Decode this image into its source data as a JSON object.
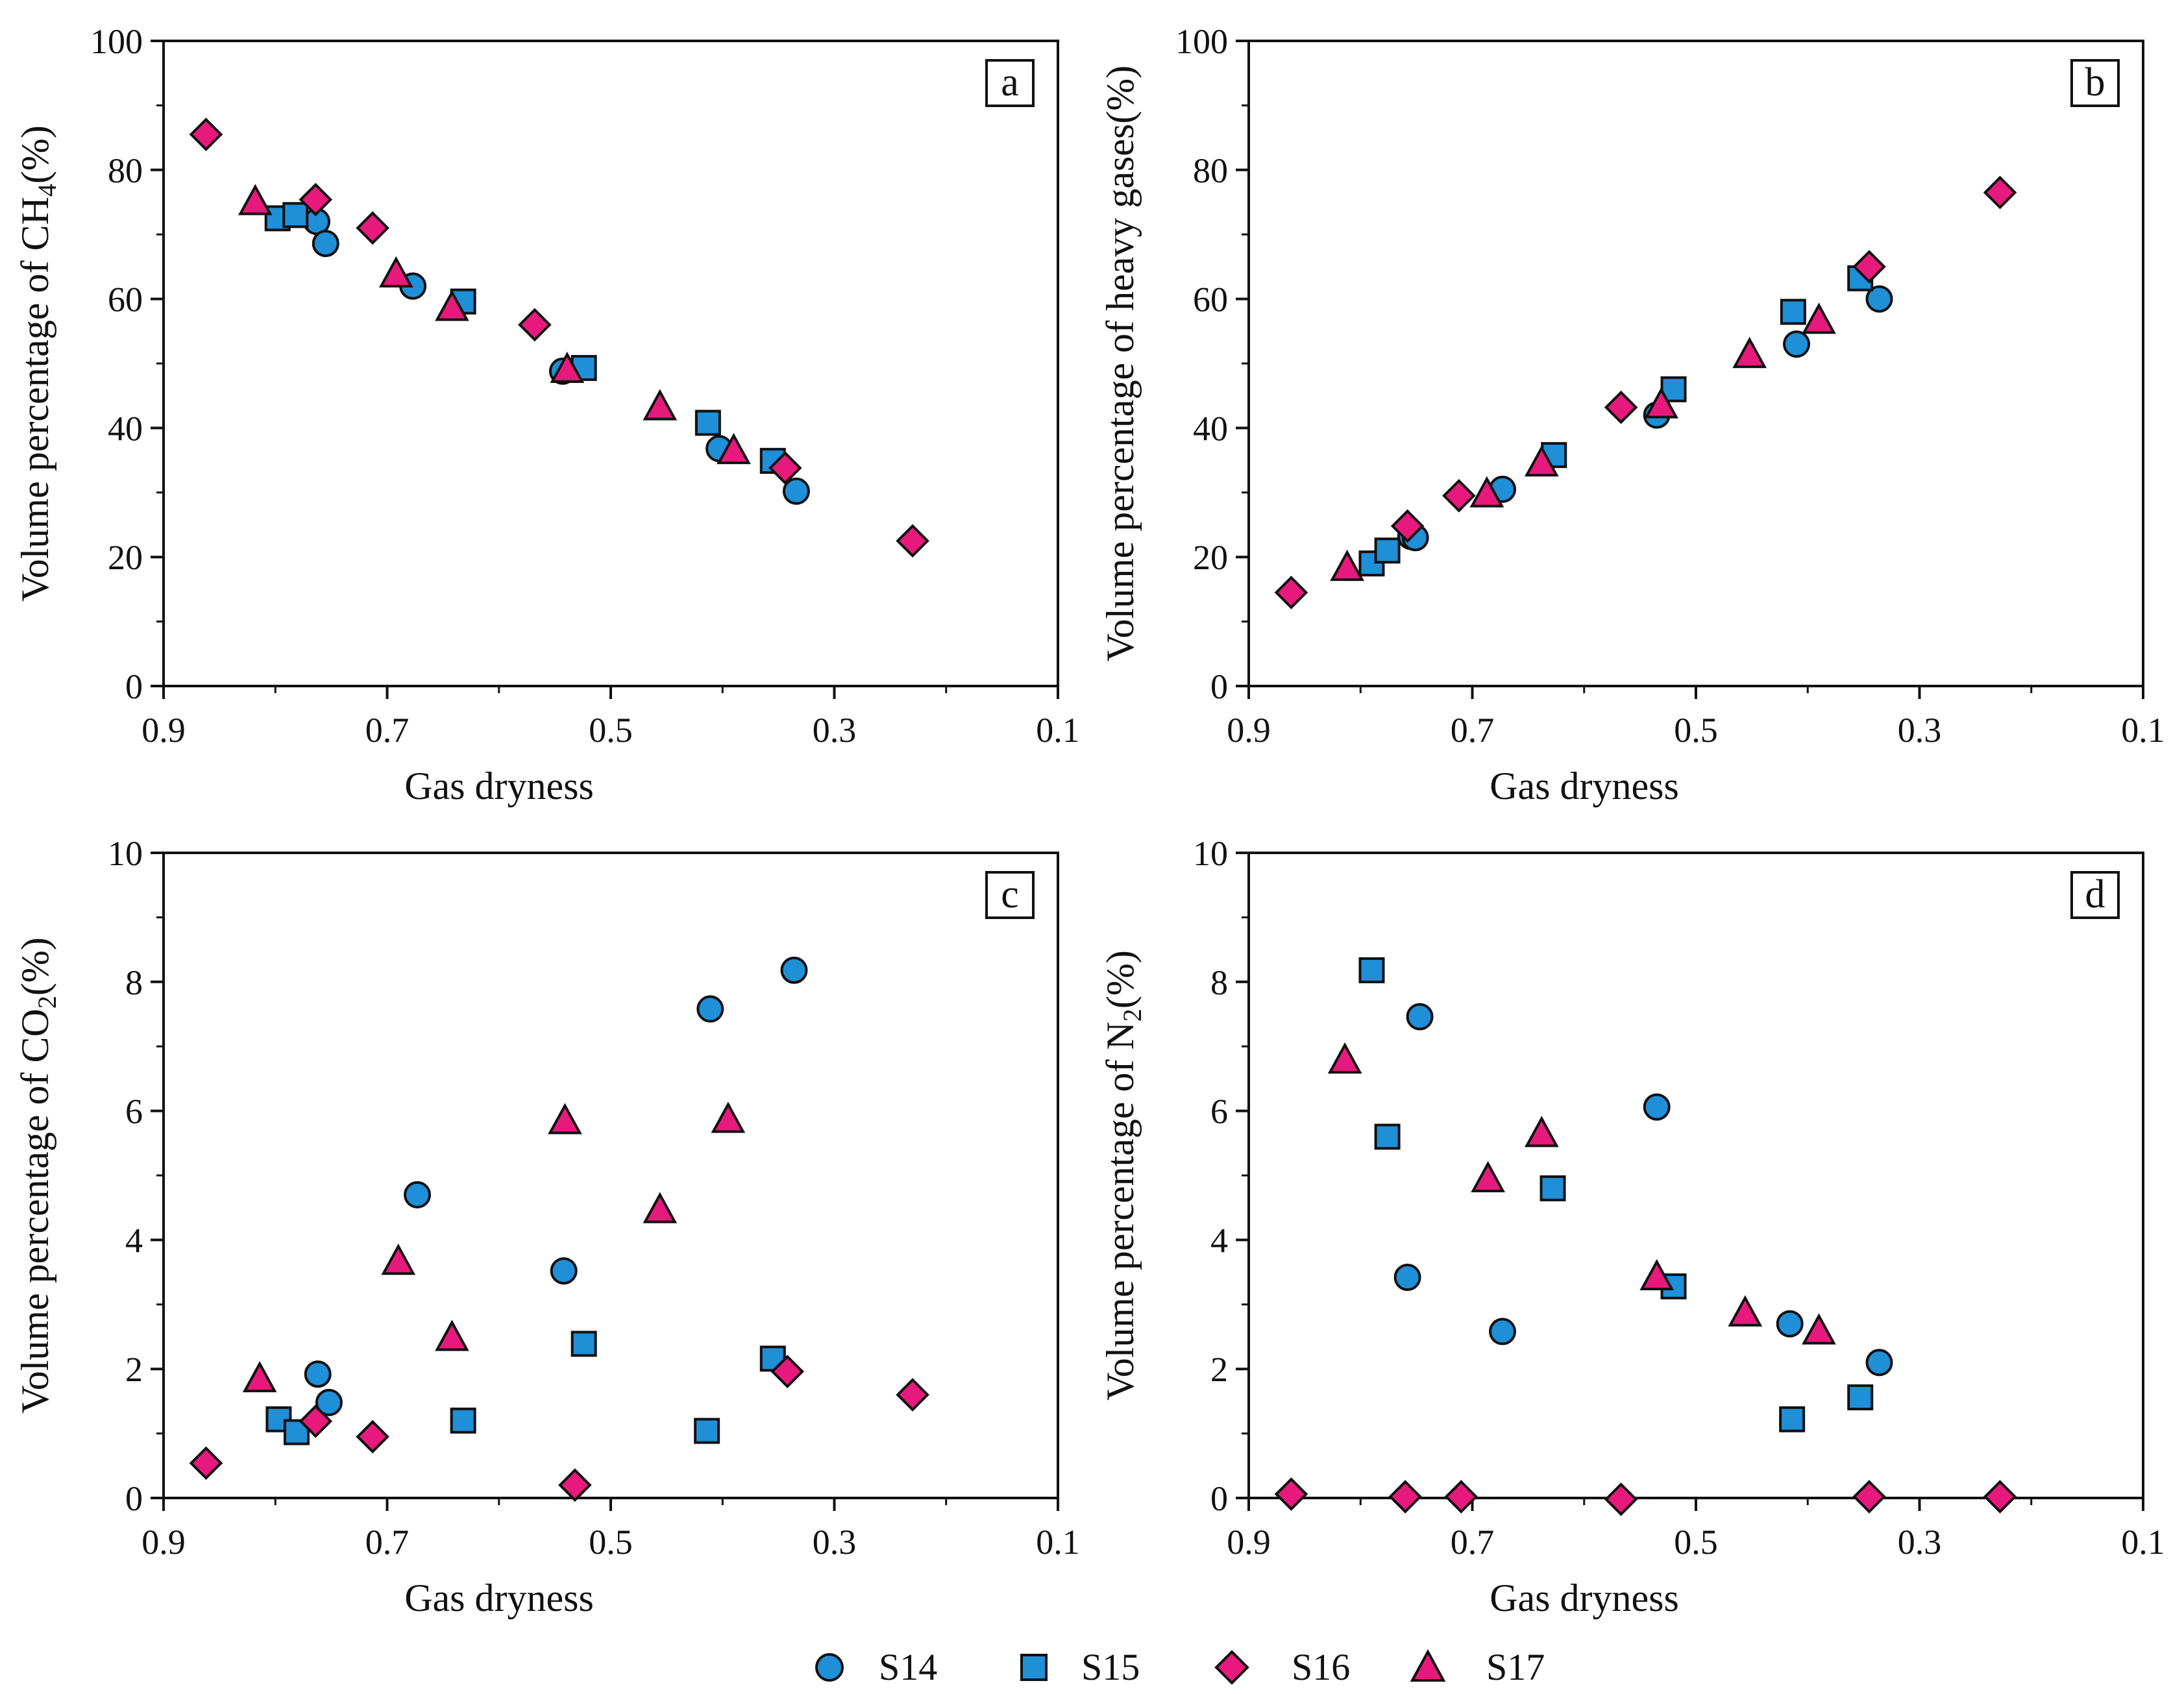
{
  "colors": {
    "S14": "#1f8fd8",
    "S15": "#1f8fd8",
    "S16": "#e8197d",
    "S17": "#e8197d",
    "stroke": "#111111"
  },
  "legend": {
    "S14": "S14",
    "S15": "S15",
    "S16": "S16",
    "S17": "S17"
  },
  "chart_data": [
    {
      "panel": "a",
      "type": "scatter",
      "xlabel": "Gas dryness",
      "ylabel_prefix": "Volume  percentage of CH",
      "ylabel_sub": "4",
      "ylabel_suffix": "(%)",
      "xlim": [
        0.9,
        0.1
      ],
      "xticks": [
        "0.9",
        "0.7",
        "0.5",
        "0.3",
        "0.1"
      ],
      "ylim": [
        0,
        100
      ],
      "yticks": [
        "0",
        "20",
        "40",
        "60",
        "80",
        "100"
      ],
      "series": [
        {
          "name": "S14",
          "marker": "circle",
          "points": [
            [
              0.763,
              72.0
            ],
            [
              0.755,
              68.6
            ],
            [
              0.677,
              62.0
            ],
            [
              0.543,
              48.8
            ],
            [
              0.403,
              36.8
            ],
            [
              0.334,
              30.2
            ]
          ]
        },
        {
          "name": "S15",
          "marker": "square",
          "points": [
            [
              0.798,
              72.5
            ],
            [
              0.782,
              73.0
            ],
            [
              0.632,
              59.6
            ],
            [
              0.524,
              49.3
            ],
            [
              0.413,
              40.8
            ],
            [
              0.355,
              34.9
            ]
          ]
        },
        {
          "name": "S16",
          "marker": "diamond",
          "points": [
            [
              0.862,
              85.5
            ],
            [
              0.764,
              75.4
            ],
            [
              0.713,
              71.0
            ],
            [
              0.568,
              56.0
            ],
            [
              0.344,
              33.8
            ],
            [
              0.23,
              22.5
            ]
          ]
        },
        {
          "name": "S17",
          "marker": "triangle",
          "points": [
            [
              0.818,
              75.0
            ],
            [
              0.692,
              63.8
            ],
            [
              0.642,
              58.6
            ],
            [
              0.539,
              49.0
            ],
            [
              0.456,
              43.2
            ],
            [
              0.39,
              36.4
            ]
          ]
        }
      ]
    },
    {
      "panel": "b",
      "type": "scatter",
      "xlabel": "Gas dryness",
      "ylabel_prefix": "Volume  percentage of heavy gases",
      "ylabel_sub": "",
      "ylabel_suffix": "(%)",
      "xlim": [
        0.9,
        0.1
      ],
      "xticks": [
        "0.9",
        "0.7",
        "0.5",
        "0.3",
        "0.1"
      ],
      "ylim": [
        0,
        100
      ],
      "yticks": [
        "0",
        "20",
        "40",
        "60",
        "80",
        "100"
      ],
      "series": [
        {
          "name": "S14",
          "marker": "circle",
          "points": [
            [
              0.755,
              23.2
            ],
            [
              0.751,
              23.0
            ],
            [
              0.673,
              30.5
            ],
            [
              0.535,
              42.0
            ],
            [
              0.41,
              53.0
            ],
            [
              0.336,
              60.0
            ]
          ]
        },
        {
          "name": "S15",
          "marker": "square",
          "points": [
            [
              0.79,
              19.0
            ],
            [
              0.776,
              21.0
            ],
            [
              0.627,
              35.8
            ],
            [
              0.52,
              46.0
            ],
            [
              0.413,
              58.0
            ],
            [
              0.353,
              63.2
            ]
          ]
        },
        {
          "name": "S16",
          "marker": "diamond",
          "points": [
            [
              0.862,
              14.5
            ],
            [
              0.758,
              24.8
            ],
            [
              0.712,
              29.5
            ],
            [
              0.567,
              43.2
            ],
            [
              0.345,
              65.0
            ],
            [
              0.228,
              76.5
            ]
          ]
        },
        {
          "name": "S17",
          "marker": "triangle",
          "points": [
            [
              0.812,
              18.3
            ],
            [
              0.687,
              29.7
            ],
            [
              0.638,
              34.5
            ],
            [
              0.531,
              43.5
            ],
            [
              0.452,
              51.3
            ],
            [
              0.39,
              56.6
            ]
          ]
        }
      ]
    },
    {
      "panel": "c",
      "type": "scatter",
      "xlabel": "Gas dryness",
      "ylabel_prefix": "Volume  percentage of CO",
      "ylabel_sub": "2",
      "ylabel_suffix": "(%)",
      "xlim": [
        0.9,
        0.1
      ],
      "xticks": [
        "0.9",
        "0.7",
        "0.5",
        "0.3",
        "0.1"
      ],
      "ylim": [
        0,
        10
      ],
      "yticks": [
        "0",
        "2",
        "4",
        "6",
        "8",
        "10"
      ],
      "series": [
        {
          "name": "S14",
          "marker": "circle",
          "points": [
            [
              0.762,
              1.92
            ],
            [
              0.752,
              1.48
            ],
            [
              0.673,
              4.7
            ],
            [
              0.542,
              3.52
            ],
            [
              0.411,
              7.58
            ],
            [
              0.336,
              8.18
            ]
          ]
        },
        {
          "name": "S15",
          "marker": "square",
          "points": [
            [
              0.797,
              1.22
            ],
            [
              0.781,
              1.02
            ],
            [
              0.632,
              1.2
            ],
            [
              0.524,
              2.39
            ],
            [
              0.414,
              1.04
            ],
            [
              0.355,
              2.16
            ]
          ]
        },
        {
          "name": "S16",
          "marker": "diamond",
          "points": [
            [
              0.862,
              0.54
            ],
            [
              0.764,
              1.19
            ],
            [
              0.713,
              0.95
            ],
            [
              0.532,
              0.2
            ],
            [
              0.342,
              1.96
            ],
            [
              0.23,
              1.6
            ]
          ]
        },
        {
          "name": "S17",
          "marker": "triangle",
          "points": [
            [
              0.814,
              1.84
            ],
            [
              0.69,
              3.66
            ],
            [
              0.642,
              2.48
            ],
            [
              0.541,
              5.84
            ],
            [
              0.456,
              4.46
            ],
            [
              0.395,
              5.86
            ]
          ]
        }
      ]
    },
    {
      "panel": "d",
      "type": "scatter",
      "xlabel": "Gas dryness",
      "ylabel_prefix": "Volume  percentage of N",
      "ylabel_sub": "2",
      "ylabel_suffix": "(%)",
      "xlim": [
        0.9,
        0.1
      ],
      "xticks": [
        "0.9",
        "0.7",
        "0.5",
        "0.3",
        "0.1"
      ],
      "ylim": [
        0,
        10
      ],
      "yticks": [
        "0",
        "2",
        "4",
        "6",
        "8",
        "10"
      ],
      "series": [
        {
          "name": "S14",
          "marker": "circle",
          "points": [
            [
              0.758,
              3.42
            ],
            [
              0.747,
              7.46
            ],
            [
              0.673,
              2.58
            ],
            [
              0.535,
              6.06
            ],
            [
              0.416,
              2.7
            ],
            [
              0.336,
              2.1
            ]
          ]
        },
        {
          "name": "S15",
          "marker": "square",
          "points": [
            [
              0.79,
              8.18
            ],
            [
              0.776,
              5.6
            ],
            [
              0.628,
              4.8
            ],
            [
              0.52,
              3.28
            ],
            [
              0.414,
              1.22
            ],
            [
              0.353,
              1.56
            ]
          ]
        },
        {
          "name": "S16",
          "marker": "diamond",
          "points": [
            [
              0.862,
              0.06
            ],
            [
              0.76,
              0.02
            ],
            [
              0.71,
              0.02
            ],
            [
              0.567,
              -0.02
            ],
            [
              0.345,
              0.02
            ],
            [
              0.228,
              0.02
            ]
          ]
        },
        {
          "name": "S17",
          "marker": "triangle",
          "points": [
            [
              0.814,
              6.78
            ],
            [
              0.686,
              4.94
            ],
            [
              0.638,
              5.64
            ],
            [
              0.535,
              3.42
            ],
            [
              0.456,
              2.86
            ],
            [
              0.39,
              2.58
            ]
          ]
        }
      ]
    }
  ]
}
